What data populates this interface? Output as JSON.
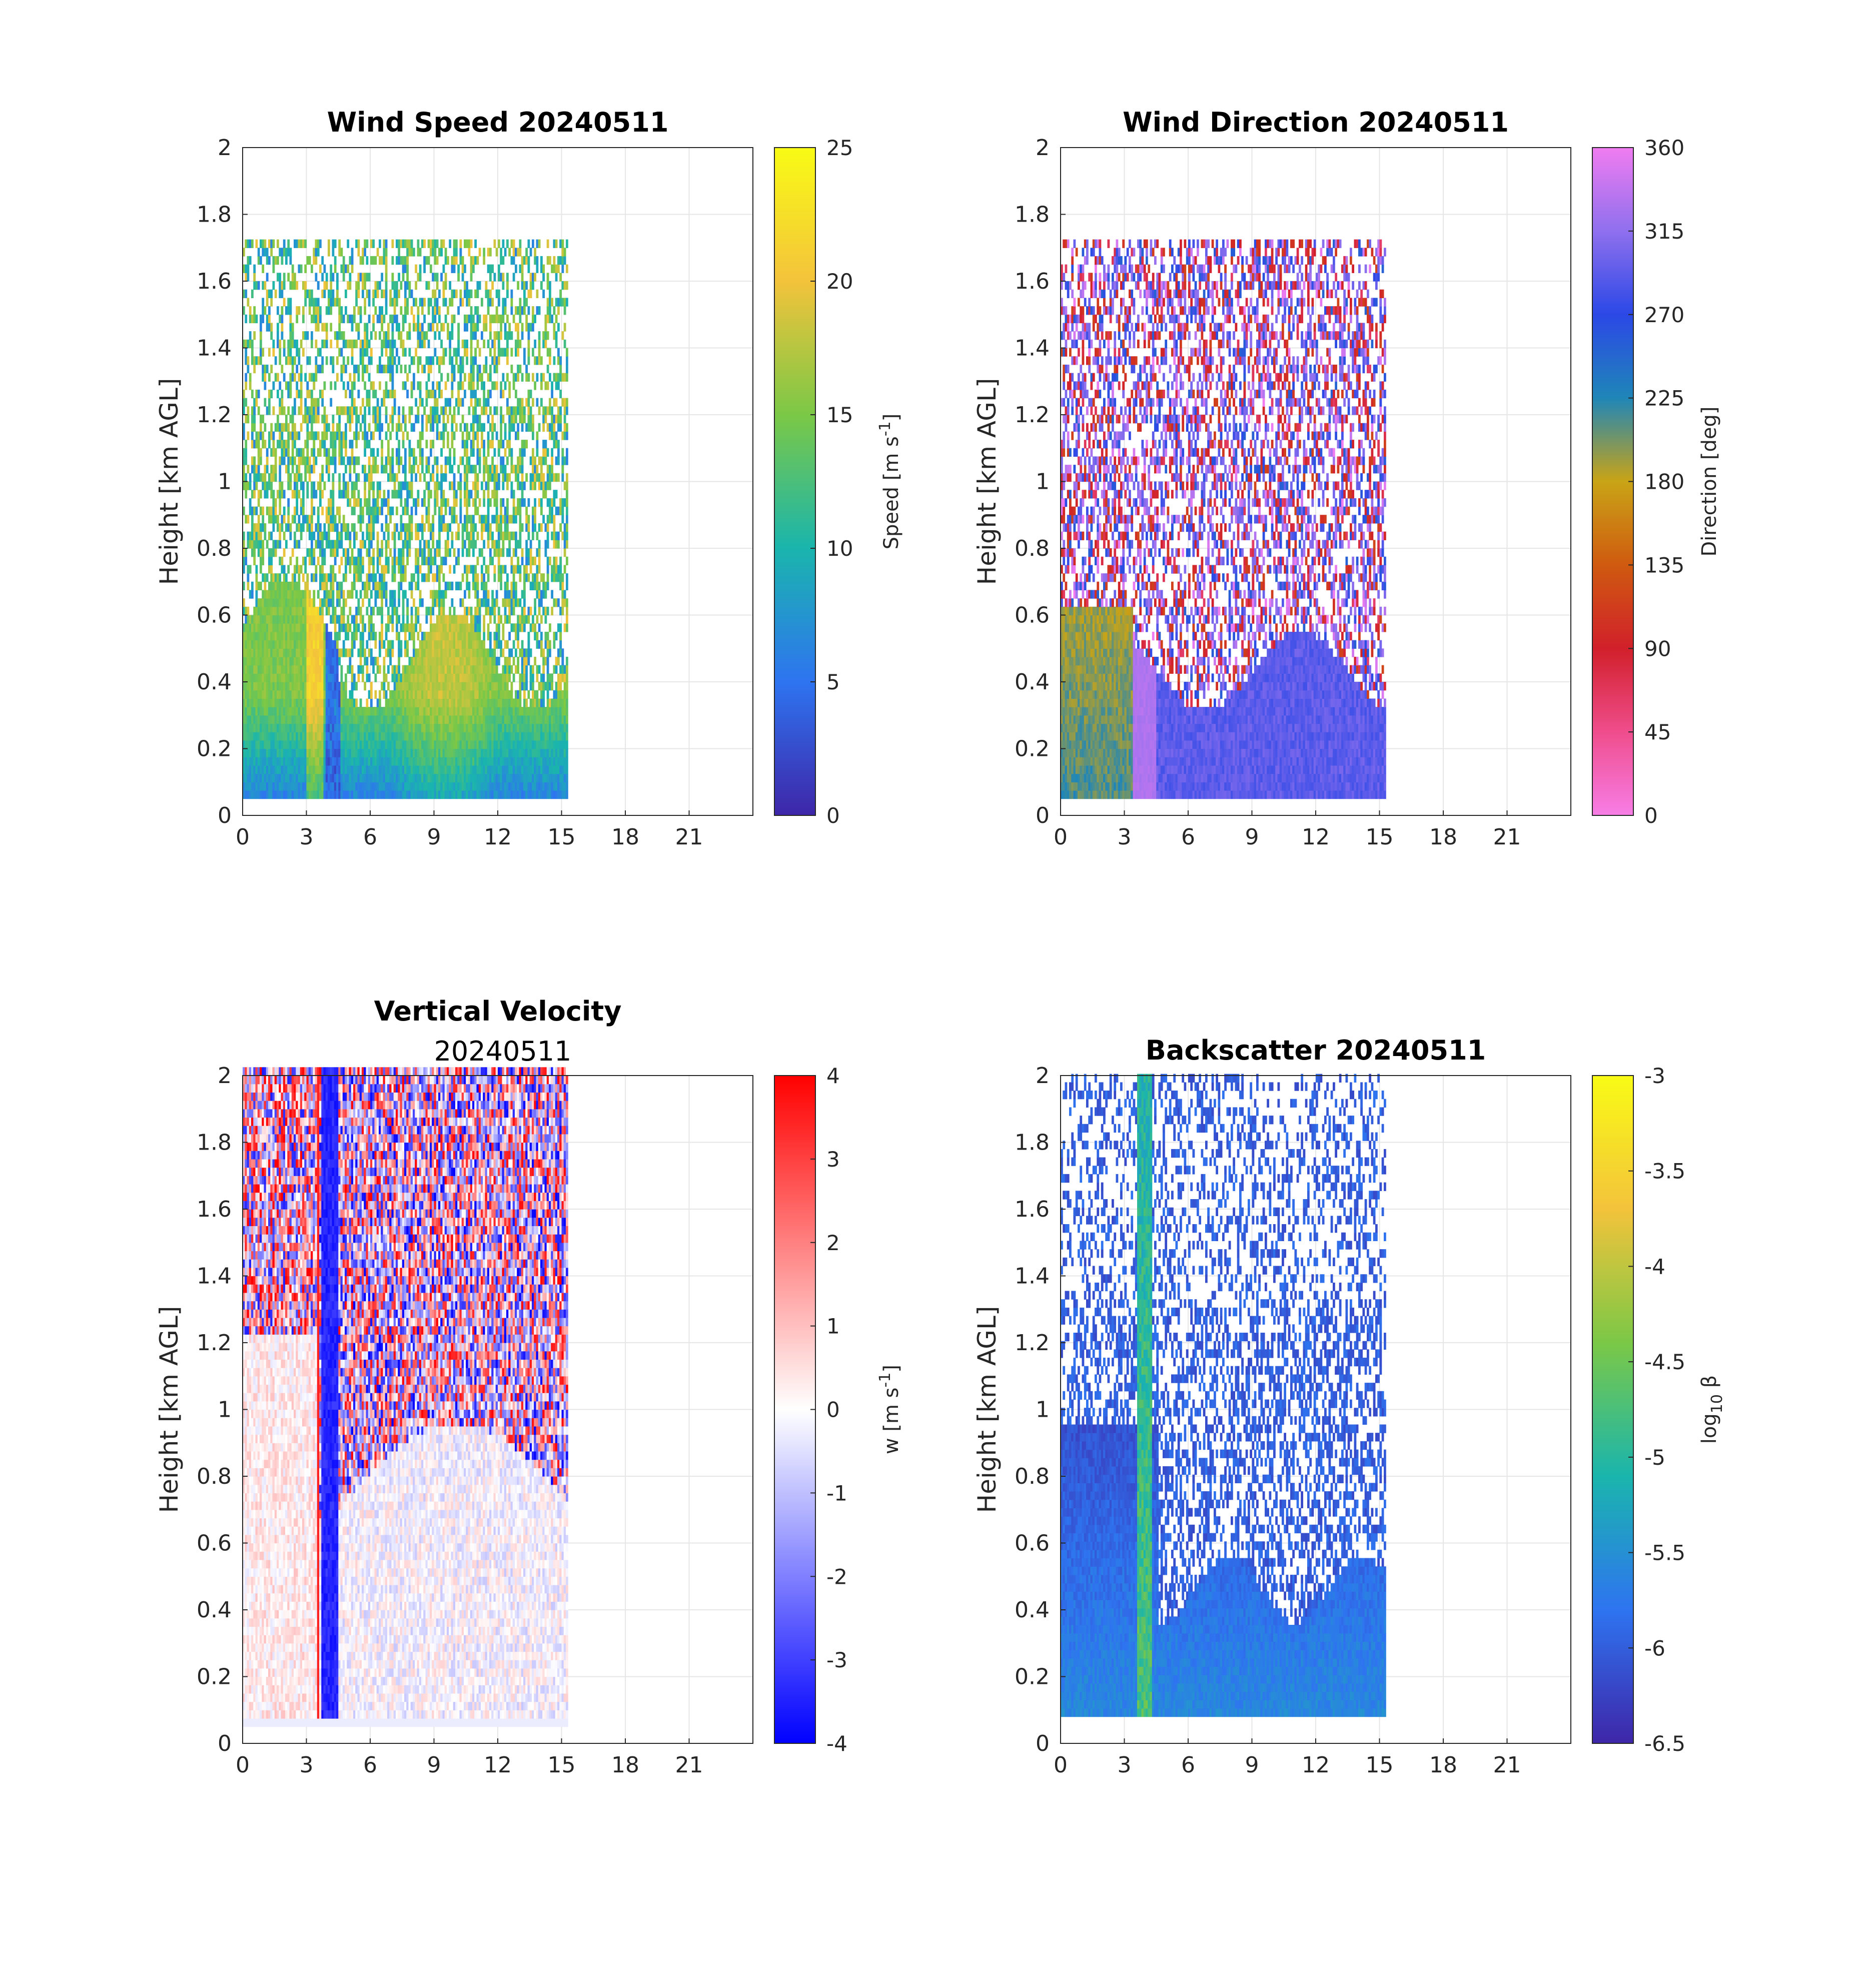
{
  "chart_data": [
    {
      "type": "heatmap",
      "title": "Wind Speed 20240511",
      "subtitle": "",
      "xlabel": "",
      "ylabel": "Height [km AGL]",
      "x_ticks": [
        "0",
        "3",
        "6",
        "9",
        "12",
        "15",
        "18",
        "21"
      ],
      "xlim": [
        0,
        24
      ],
      "y_ticks": [
        "0",
        "0.2",
        "0.4",
        "0.6",
        "0.8",
        "1",
        "1.2",
        "1.4",
        "1.6",
        "1.8",
        "2"
      ],
      "ylim": [
        0,
        2
      ],
      "data_time_range": [
        0,
        15.2
      ],
      "data_height_range": [
        0.05,
        1.7
      ],
      "colorbar": {
        "label": "Speed [m s-1]",
        "label_main": "Speed [m s",
        "label_sup": "-1",
        "label_end": "]",
        "ticks": [
          "0",
          "5",
          "10",
          "15",
          "20",
          "25"
        ],
        "range": [
          0,
          25
        ],
        "colormap": "parula",
        "colors": [
          "#3e26a8",
          "#2e74f0",
          "#1ab5ad",
          "#7bc846",
          "#f3c33b",
          "#f9fb15"
        ]
      }
    },
    {
      "type": "heatmap",
      "title": "Wind Direction 20240511",
      "subtitle": "",
      "xlabel": "",
      "ylabel": "Height [km AGL]",
      "x_ticks": [
        "0",
        "3",
        "6",
        "9",
        "12",
        "15",
        "18",
        "21"
      ],
      "xlim": [
        0,
        24
      ],
      "y_ticks": [
        "0",
        "0.2",
        "0.4",
        "0.6",
        "0.8",
        "1",
        "1.2",
        "1.4",
        "1.6",
        "1.8",
        "2"
      ],
      "ylim": [
        0,
        2
      ],
      "data_time_range": [
        0,
        15.2
      ],
      "data_height_range": [
        0.05,
        1.7
      ],
      "colorbar": {
        "label": "Direction [deg]",
        "label_main": "Direction [deg]",
        "label_sup": "",
        "label_end": "",
        "ticks": [
          "0",
          "45",
          "90",
          "135",
          "180",
          "225",
          "270",
          "315",
          "360"
        ],
        "range": [
          0,
          360
        ],
        "colormap": "cyclic",
        "colors": [
          "#f77ee6",
          "#ef4d8c",
          "#d1202a",
          "#cf5a10",
          "#c9a416",
          "#1f86b8",
          "#2b48e6",
          "#8f70ee",
          "#f07cf0"
        ]
      }
    },
    {
      "type": "heatmap",
      "title": "Vertical Velocity",
      "subtitle": "20240511",
      "xlabel": "",
      "ylabel": "Height [km AGL]",
      "x_ticks": [
        "0",
        "3",
        "6",
        "9",
        "12",
        "15",
        "18",
        "21"
      ],
      "xlim": [
        0,
        24
      ],
      "y_ticks": [
        "0",
        "0.2",
        "0.4",
        "0.6",
        "0.8",
        "1",
        "1.2",
        "1.4",
        "1.6",
        "1.8",
        "2"
      ],
      "ylim": [
        0,
        2
      ],
      "data_time_range": [
        0,
        15.2
      ],
      "data_height_range": [
        0.05,
        2.0
      ],
      "colorbar": {
        "label": "w [m s-1]",
        "label_main": "w [m s",
        "label_sup": "-1",
        "label_end": "]",
        "ticks": [
          "-4",
          "-3",
          "-2",
          "-1",
          "0",
          "1",
          "2",
          "3",
          "4"
        ],
        "range": [
          -4,
          4
        ],
        "colormap": "blue-white-red",
        "colors": [
          "#0000ff",
          "#ffffff",
          "#ff0000"
        ]
      }
    },
    {
      "type": "heatmap",
      "title": "Backscatter 20240511",
      "subtitle": "",
      "xlabel": "",
      "ylabel": "Height [km AGL]",
      "x_ticks": [
        "0",
        "3",
        "6",
        "9",
        "12",
        "15",
        "18",
        "21"
      ],
      "xlim": [
        0,
        24
      ],
      "y_ticks": [
        "0",
        "0.2",
        "0.4",
        "0.6",
        "0.8",
        "1",
        "1.2",
        "1.4",
        "1.6",
        "1.8",
        "2"
      ],
      "ylim": [
        0,
        2
      ],
      "data_time_range": [
        0,
        15.2
      ],
      "data_height_range": [
        0.08,
        2.0
      ],
      "colorbar": {
        "label": "log10 β",
        "label_main": "log",
        "label_sup": "",
        "label_sub": "10",
        "label_end": " β",
        "ticks": [
          "-6.5",
          "-6",
          "-5.5",
          "-5",
          "-4.5",
          "-4",
          "-3.5",
          "-3"
        ],
        "range": [
          -6.5,
          -3
        ],
        "colormap": "parula",
        "colors": [
          "#3e26a8",
          "#2e74f0",
          "#1ab5ad",
          "#7bc846",
          "#f3c33b",
          "#f9fb15"
        ]
      }
    }
  ]
}
